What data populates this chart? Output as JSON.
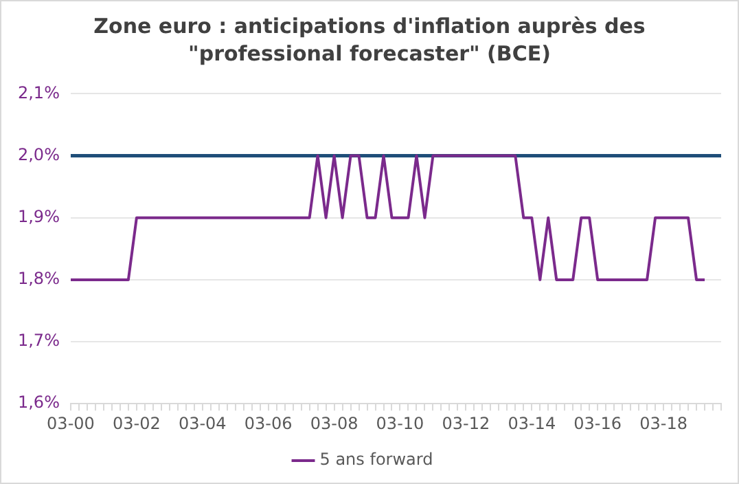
{
  "chart_data": {
    "type": "line",
    "title": "Zone euro : anticipations d'inflation auprès des \"professional forecaster\" (BCE)",
    "categories": [
      "03-00",
      null,
      null,
      null,
      null,
      null,
      null,
      null,
      "03-02",
      null,
      null,
      null,
      null,
      null,
      null,
      null,
      "03-04",
      null,
      null,
      null,
      null,
      null,
      null,
      null,
      "03-06",
      null,
      null,
      null,
      null,
      null,
      null,
      null,
      "03-08",
      null,
      null,
      null,
      null,
      null,
      null,
      null,
      "03-10",
      null,
      null,
      null,
      null,
      null,
      null,
      null,
      "03-12",
      null,
      null,
      null,
      null,
      null,
      null,
      null,
      "03-14",
      null,
      null,
      null,
      null,
      null,
      null,
      null,
      "03-16",
      null,
      null,
      null,
      null,
      null,
      null,
      null,
      "03-18",
      null,
      null,
      null,
      null,
      null,
      null,
      null
    ],
    "series": [
      {
        "name": "5 ans forward",
        "color": "#7b2a8c",
        "values": [
          1.8,
          1.8,
          1.8,
          1.8,
          1.8,
          1.8,
          1.8,
          1.8,
          1.9,
          1.9,
          1.9,
          1.9,
          1.9,
          1.9,
          1.9,
          1.9,
          1.9,
          1.9,
          1.9,
          1.9,
          1.9,
          1.9,
          1.9,
          1.9,
          1.9,
          1.9,
          1.9,
          1.9,
          1.9,
          1.9,
          2.0,
          1.9,
          2.0,
          1.9,
          2.0,
          2.0,
          1.9,
          1.9,
          2.0,
          1.9,
          1.9,
          1.9,
          2.0,
          1.9,
          2.0,
          2.0,
          2.0,
          2.0,
          2.0,
          2.0,
          2.0,
          2.0,
          2.0,
          2.0,
          2.0,
          1.9,
          1.9,
          1.8,
          1.9,
          1.8,
          1.8,
          1.8,
          1.9,
          1.9,
          1.8,
          1.8,
          1.8,
          1.8,
          1.8,
          1.8,
          1.8,
          1.9,
          1.9,
          1.9,
          1.9,
          1.9,
          1.8,
          1.8,
          null,
          null
        ]
      }
    ],
    "ref_lines": [
      {
        "axis": "y",
        "value": 2.0,
        "color": "#1f4e79"
      }
    ],
    "ylim": [
      1.6,
      2.1
    ],
    "yticks": [
      {
        "value": 1.6,
        "label": "1,6%"
      },
      {
        "value": 1.7,
        "label": "1,7%"
      },
      {
        "value": 1.8,
        "label": "1,8%"
      },
      {
        "value": 1.9,
        "label": "1,9%"
      },
      {
        "value": 2.0,
        "label": "2,0%"
      },
      {
        "value": 2.1,
        "label": "2,1%"
      }
    ],
    "grid": "y",
    "legend": "bottom",
    "marker": "none",
    "line_style": "solid"
  }
}
